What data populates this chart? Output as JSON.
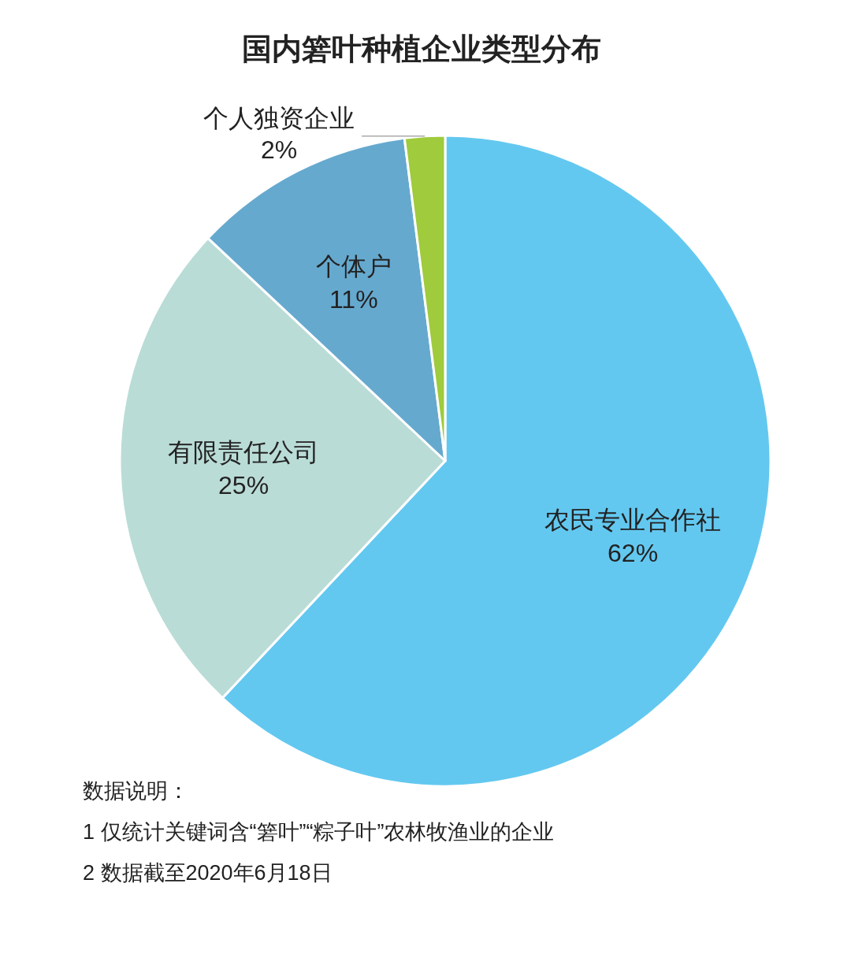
{
  "chart_data": {
    "type": "pie",
    "title": "国内箬叶种植企业类型分布",
    "categories": [
      "农民专业合作社",
      "有限责任公司",
      "个体户",
      "个人独资企业"
    ],
    "values": [
      62,
      25,
      11,
      2
    ],
    "value_labels": [
      "62%",
      "25%",
      "11%",
      "2%"
    ],
    "colors": [
      "#63c8f0",
      "#badcd6",
      "#66a9cf",
      "#9fcb3d"
    ],
    "annotations": [
      "数据说明：",
      "1 仅统计关键词含“箬叶”“粽子叶”农林牧渔业的企业",
      "2 数据截至2020年6月18日"
    ]
  }
}
